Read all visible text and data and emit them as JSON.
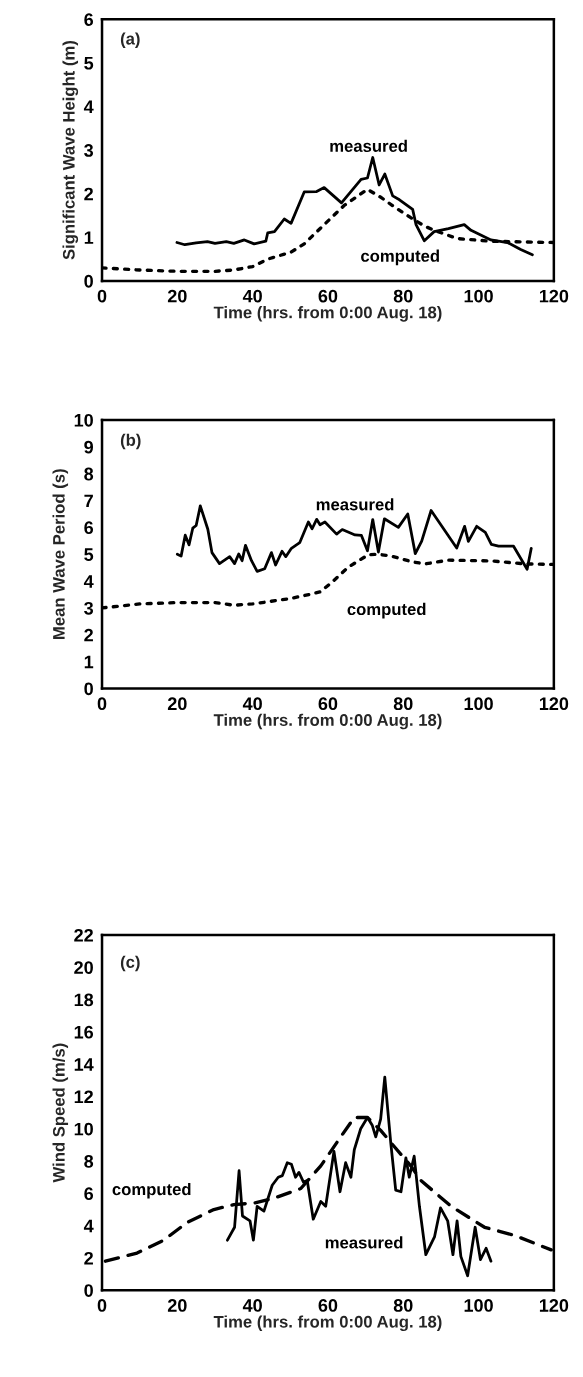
{
  "chart_data": [
    {
      "type": "line",
      "xlabel": "Time (hrs. from 0:00 Aug. 18)",
      "ylabel": "Significant Wave Height (m)",
      "xlim": [
        0,
        120
      ],
      "xticks": [
        0,
        20,
        40,
        60,
        80,
        100,
        120
      ],
      "ylim": [
        0,
        6
      ],
      "yticks": [
        0,
        1,
        2,
        3,
        4,
        5,
        6
      ],
      "grid": false,
      "annotations": [
        "(a)"
      ],
      "series": [
        {
          "name": "measured",
          "color": "#000000",
          "line_style": "solid",
          "x": [
            19.9,
            22,
            25,
            28,
            30,
            33,
            35,
            37.8,
            40.4,
            43.5,
            44,
            45.8,
            48.4,
            50.2,
            53.7,
            57,
            59,
            63.6,
            68.8,
            70.5,
            71.9,
            73.6,
            75.1,
            77.2,
            79,
            82.5,
            83.4,
            85.6,
            88.2,
            92,
            96.2,
            98,
            103.3,
            107.7,
            111.2,
            114.3
          ],
          "values": [
            0.88,
            0.83,
            0.87,
            0.9,
            0.86,
            0.9,
            0.86,
            0.94,
            0.85,
            0.91,
            1.1,
            1.13,
            1.42,
            1.32,
            2.04,
            2.05,
            2.14,
            1.79,
            2.33,
            2.36,
            2.83,
            2.2,
            2.45,
            1.95,
            1.86,
            1.64,
            1.29,
            0.92,
            1.13,
            1.2,
            1.29,
            1.16,
            0.94,
            0.88,
            0.72,
            0.6
          ]
        },
        {
          "name": "computed",
          "color": "#000000",
          "line_style": "dotted",
          "x": [
            0,
            10,
            20,
            30,
            35,
            40,
            44,
            50.2,
            53.7,
            59,
            64.3,
            70.5,
            74,
            77.6,
            82,
            85.6,
            88.2,
            94.4,
            103.3,
            120
          ],
          "values": [
            0.3,
            0.25,
            0.22,
            0.22,
            0.25,
            0.33,
            0.5,
            0.66,
            0.85,
            1.29,
            1.73,
            2.1,
            1.92,
            1.7,
            1.45,
            1.26,
            1.16,
            0.97,
            0.91,
            0.88
          ]
        }
      ]
    },
    {
      "type": "line",
      "xlabel": "Time (hrs. from 0:00 Aug. 18)",
      "ylabel": "Mean Wave Period (s)",
      "xlim": [
        0,
        120
      ],
      "xticks": [
        0,
        20,
        40,
        60,
        80,
        100,
        120
      ],
      "ylim": [
        0,
        10
      ],
      "yticks": [
        0,
        1,
        2,
        3,
        4,
        5,
        6,
        7,
        8,
        9,
        10
      ],
      "grid": false,
      "annotations": [
        "(b)"
      ],
      "series": [
        {
          "name": "measured",
          "color": "#000000",
          "line_style": "solid",
          "x": [
            20,
            21,
            22.1,
            23.1,
            24.1,
            25,
            26.1,
            28.1,
            29.2,
            31.2,
            33.9,
            35.2,
            36.3,
            37.2,
            38.1,
            39.7,
            41.2,
            43.2,
            45,
            46.1,
            47.8,
            48.8,
            50.3,
            52.5,
            54.8,
            55.8,
            57,
            57.9,
            59.2,
            62.3,
            63.8,
            67.2,
            68.9,
            70.5,
            71.9,
            73.4,
            75,
            78.7,
            81.2,
            83.2,
            84.9,
            87.4,
            94.2,
            96.3,
            97.3,
            99.5,
            101.8,
            103.4,
            105.3,
            109.3,
            112.9,
            114
          ],
          "values": [
            5.0,
            4.93,
            5.71,
            5.35,
            5.97,
            6.07,
            6.8,
            5.93,
            5.06,
            4.65,
            4.91,
            4.65,
            5.01,
            4.76,
            5.33,
            4.76,
            4.36,
            4.46,
            5.06,
            4.6,
            5.11,
            4.91,
            5.22,
            5.43,
            6.2,
            5.95,
            6.3,
            6.1,
            6.2,
            5.75,
            5.92,
            5.72,
            5.7,
            5.13,
            6.29,
            5.08,
            6.32,
            6.0,
            6.5,
            5.02,
            5.49,
            6.63,
            5.23,
            6.04,
            5.48,
            6.04,
            5.81,
            5.37,
            5.3,
            5.3,
            4.44,
            5.22
          ]
        },
        {
          "name": "computed",
          "color": "#000000",
          "line_style": "dotted",
          "x": [
            0,
            10,
            20,
            30,
            35,
            40,
            50,
            55,
            58,
            61.4,
            65.4,
            70.7,
            73.4,
            76.9,
            82.3,
            85.8,
            92,
            103.5,
            112.4,
            120
          ],
          "values": [
            3.0,
            3.15,
            3.2,
            3.2,
            3.1,
            3.15,
            3.35,
            3.5,
            3.6,
            4.0,
            4.52,
            4.98,
            5.0,
            4.93,
            4.72,
            4.64,
            4.78,
            4.75,
            4.64,
            4.62
          ]
        }
      ]
    },
    {
      "type": "line",
      "xlabel": "Time (hrs. from 0:00 Aug. 18)",
      "ylabel": "Wind Speed (m/s)",
      "xlim": [
        0,
        120
      ],
      "xticks": [
        0,
        20,
        40,
        60,
        80,
        100,
        120
      ],
      "ylim": [
        0,
        22
      ],
      "yticks": [
        0,
        2,
        4,
        6,
        8,
        10,
        12,
        14,
        16,
        18,
        20,
        22
      ],
      "grid": false,
      "annotations": [
        "(c)"
      ],
      "series": [
        {
          "name": "measured",
          "color": "#000000",
          "line_style": "solid",
          "x": [
            33.3,
            35.2,
            36.4,
            37.3,
            39.3,
            40.2,
            41.2,
            43,
            45.2,
            46.8,
            47.9,
            49.2,
            50.3,
            51.4,
            52.3,
            53.5,
            54.5,
            56.1,
            58.1,
            59.4,
            61.6,
            63.2,
            64.7,
            66.1,
            67,
            68.7,
            70.5,
            71.8,
            72.7,
            74,
            75.1,
            76.7,
            78,
            79.4,
            80.7,
            81.6,
            82.9,
            84.3,
            86,
            88.3,
            89.9,
            91.8,
            93.2,
            94.3,
            95.3,
            97.1,
            99.1,
            100.5,
            102,
            103.3
          ],
          "values": [
            3.1,
            3.9,
            7.4,
            4.6,
            4.3,
            3.1,
            5.2,
            4.9,
            6.5,
            7.0,
            7.1,
            7.9,
            7.8,
            7.0,
            7.3,
            6.7,
            6.8,
            4.4,
            5.5,
            5.2,
            8.6,
            6.1,
            7.9,
            7.0,
            8.7,
            10.0,
            10.7,
            10.2,
            9.5,
            10.6,
            13.2,
            9.1,
            6.2,
            6.1,
            8.2,
            7.0,
            8.3,
            5.2,
            2.2,
            3.3,
            5.1,
            4.3,
            2.2,
            4.3,
            2.1,
            0.9,
            3.9,
            1.9,
            2.6,
            1.8
          ]
        },
        {
          "name": "computed",
          "color": "#000000",
          "line_style": "dashed",
          "x": [
            0.9,
            9.3,
            16.4,
            22.6,
            29.7,
            35,
            40.4,
            45.7,
            52.8,
            58.1,
            63.4,
            67,
            70.5,
            74,
            77.6,
            82,
            84.7,
            92.7,
            101.6,
            109.5,
            119.3
          ],
          "values": [
            1.8,
            2.3,
            3.1,
            4.2,
            5.0,
            5.3,
            5.4,
            5.7,
            6.3,
            7.7,
            9.5,
            10.7,
            10.7,
            9.9,
            8.9,
            7.7,
            6.8,
            5.2,
            3.9,
            3.4,
            2.5
          ]
        }
      ]
    }
  ]
}
